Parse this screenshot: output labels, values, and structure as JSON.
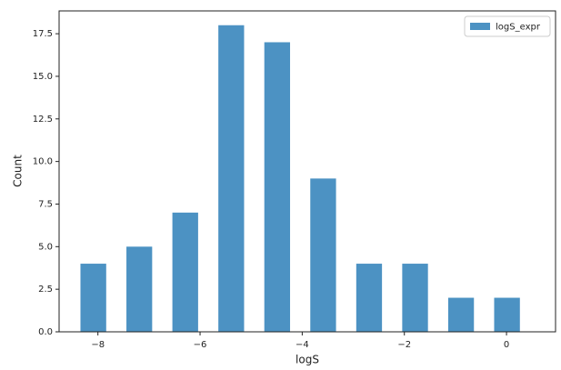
{
  "chart_data": {
    "type": "histogram",
    "xlabel": "logS",
    "ylabel": "Count",
    "bins": [
      -8.54,
      -7.64,
      -6.74,
      -5.84,
      -4.94,
      -4.04,
      -3.14,
      -2.24,
      -1.34,
      -0.44,
      0.46
    ],
    "series": [
      {
        "name": "logS_expr",
        "color": "#1f77b4",
        "values": [
          4,
          5,
          7,
          18,
          17,
          9,
          4,
          4,
          2,
          2
        ]
      }
    ],
    "alpha": 0.8,
    "rwidth": 0.56,
    "xlim": [
      -8.76,
      0.96
    ],
    "ylim": [
      0,
      18.84
    ],
    "xticks": [
      {
        "value": -8,
        "label": "−8"
      },
      {
        "value": -6,
        "label": "−6"
      },
      {
        "value": -4,
        "label": "−4"
      },
      {
        "value": -2,
        "label": "−2"
      },
      0
    ],
    "yticks": [
      {
        "value": 0,
        "label": "0.0"
      },
      {
        "value": 2.5,
        "label": "2.5"
      },
      {
        "value": 5,
        "label": "5.0"
      },
      {
        "value": 7.5,
        "label": "7.5"
      },
      {
        "value": 10,
        "label": "10.0"
      },
      {
        "value": 12.5,
        "label": "12.5"
      },
      {
        "value": 15,
        "label": "15.0"
      },
      {
        "value": 17.5,
        "label": "17.5"
      }
    ],
    "legend": "upper right"
  }
}
